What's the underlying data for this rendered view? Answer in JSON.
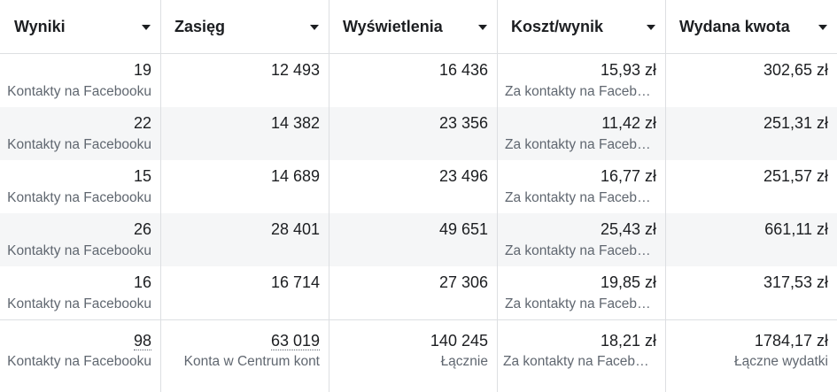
{
  "columns": [
    {
      "label": "Wyniki"
    },
    {
      "label": "Zasięg"
    },
    {
      "label": "Wyświetlenia"
    },
    {
      "label": "Koszt/wynik"
    },
    {
      "label": "Wydana kwota"
    }
  ],
  "rows": [
    {
      "results": "19",
      "results_type": "Kontakty na Facebooku",
      "reach": "12 493",
      "impressions": "16 436",
      "cost_per_result": "15,93 zł",
      "cost_per_result_type": "Za kontakty na Facebooku",
      "amount_spent": "302,65 zł"
    },
    {
      "results": "22",
      "results_type": "Kontakty na Facebooku",
      "reach": "14 382",
      "impressions": "23 356",
      "cost_per_result": "11,42 zł",
      "cost_per_result_type": "Za kontakty na Facebooku",
      "amount_spent": "251,31 zł"
    },
    {
      "results": "15",
      "results_type": "Kontakty na Facebooku",
      "reach": "14 689",
      "impressions": "23 496",
      "cost_per_result": "16,77 zł",
      "cost_per_result_type": "Za kontakty na Facebooku",
      "amount_spent": "251,57 zł"
    },
    {
      "results": "26",
      "results_type": "Kontakty na Facebooku",
      "reach": "28 401",
      "impressions": "49 651",
      "cost_per_result": "25,43 zł",
      "cost_per_result_type": "Za kontakty na Facebooku",
      "amount_spent": "661,11 zł"
    },
    {
      "results": "16",
      "results_type": "Kontakty na Facebooku",
      "reach": "16 714",
      "impressions": "27 306",
      "cost_per_result": "19,85 zł",
      "cost_per_result_type": "Za kontakty na Facebooku",
      "amount_spent": "317,53 zł"
    }
  ],
  "totals": {
    "results": "98",
    "results_type": "Kontakty na Facebooku",
    "reach": "63 019",
    "reach_type": "Konta w Centrum kont",
    "impressions": "140 245",
    "impressions_type": "Łącznie",
    "cost_per_result": "18,21 zł",
    "cost_per_result_type": "Za kontakty na Facebooku",
    "amount_spent": "1784,17 zł",
    "amount_spent_type": "Łączne wydatki"
  },
  "icons": {
    "sort": "caret-down-icon"
  },
  "colors": {
    "text_primary": "#1c1e21",
    "text_secondary": "#606770",
    "row_shade": "#f5f6f7",
    "border": "#dddfe2"
  }
}
